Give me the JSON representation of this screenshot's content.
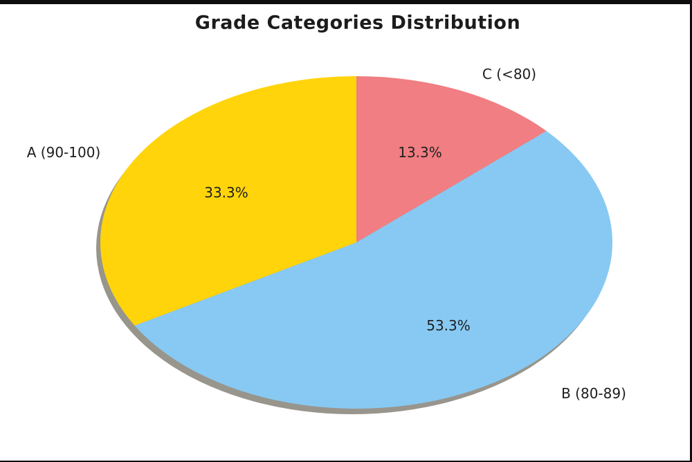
{
  "chart_data": {
    "type": "pie",
    "title": "Grade Categories Distribution",
    "start_angle": 90,
    "direction": "clockwise",
    "shadow": true,
    "shadow_color": "#98958d",
    "legend_position": "none",
    "categories": [
      "C (<80)",
      "B (80-89)",
      "A (90-100)"
    ],
    "values": [
      13.3,
      53.3,
      33.3
    ],
    "slices": [
      {
        "label": "C (<80)",
        "value": 13.3,
        "pct_label": "13.3%",
        "color": "#F07E82"
      },
      {
        "label": "B (80-89)",
        "value": 53.3,
        "pct_label": "53.3%",
        "color": "#87C9F2"
      },
      {
        "label": "A (90-100)",
        "value": 33.3,
        "pct_label": "33.3%",
        "color": "#FFD40B"
      }
    ]
  }
}
